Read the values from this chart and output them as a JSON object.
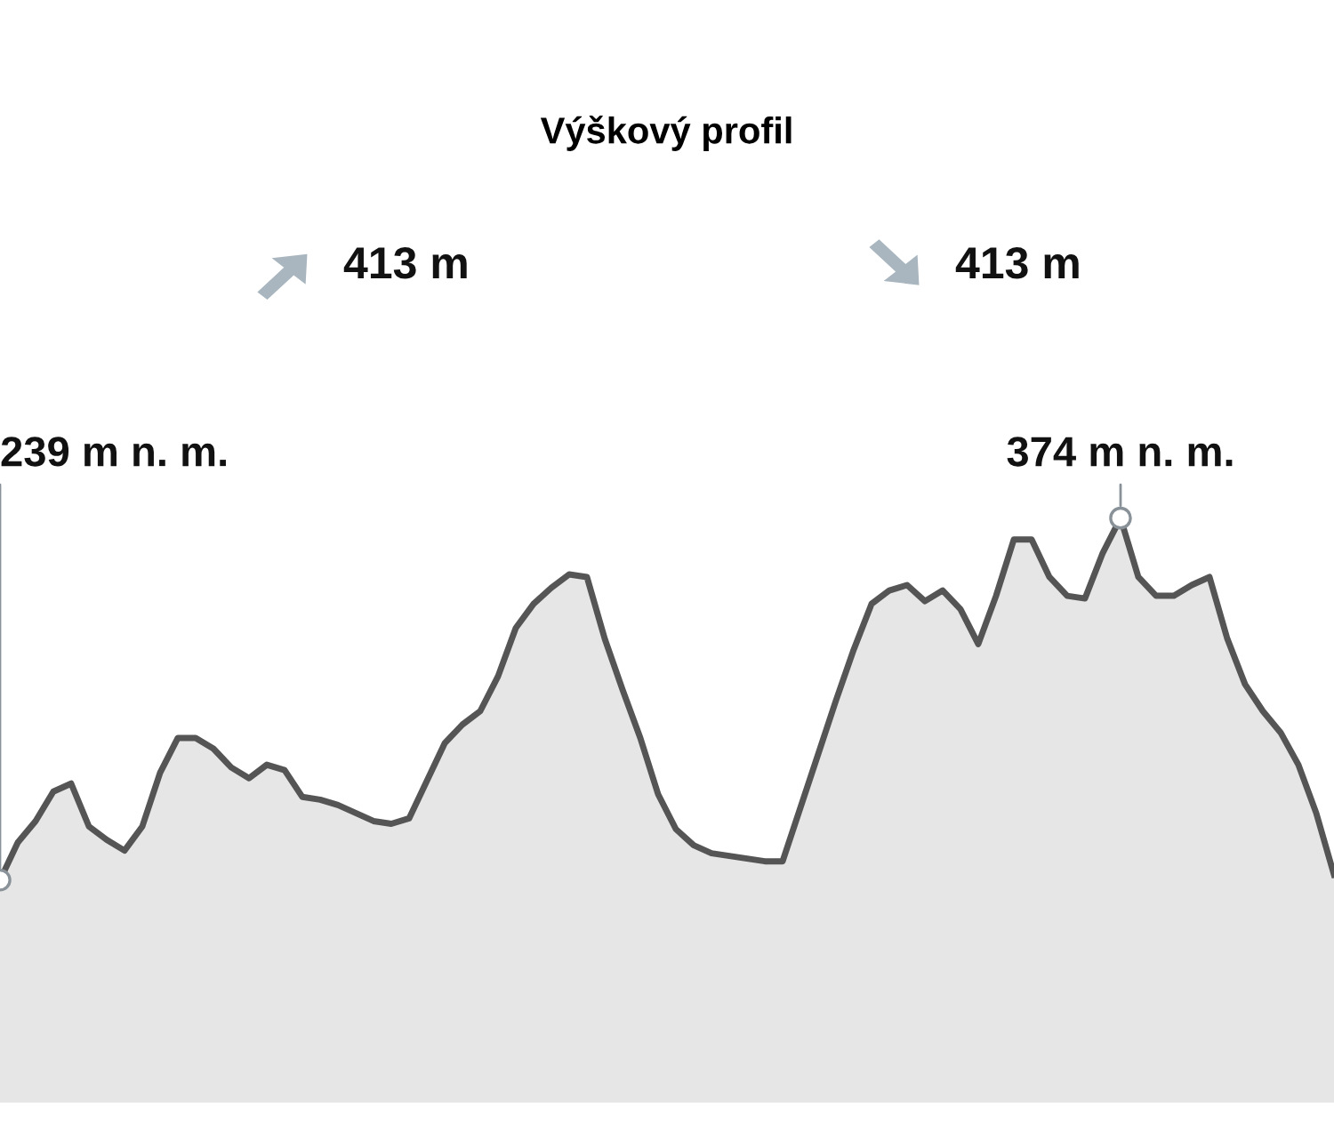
{
  "chart_data": {
    "type": "area",
    "title": "Výškový profil",
    "annotations": [
      "413 m",
      "413 m"
    ],
    "categories": [
      null,
      null,
      null,
      null,
      null,
      null,
      null,
      null,
      null,
      null,
      null,
      null,
      null,
      null,
      null,
      null,
      null,
      null,
      null,
      null,
      null,
      null,
      null,
      null,
      null,
      null,
      null,
      null,
      null,
      null,
      null,
      null,
      null,
      null,
      null,
      null,
      null,
      null,
      null,
      null,
      null,
      null,
      null,
      null,
      null,
      null,
      null,
      null,
      null,
      null,
      null,
      null,
      null,
      null,
      null,
      null,
      null,
      null,
      null,
      null,
      null,
      null,
      null,
      null,
      null,
      null,
      null,
      null,
      null,
      null,
      null,
      null,
      null,
      null,
      null,
      null
    ],
    "series": [
      {
        "color": "#555555",
        "values": [
          239,
          253,
          261,
          272,
          275,
          259,
          254,
          250,
          259,
          279,
          292,
          292,
          288,
          281,
          277,
          282,
          280,
          270,
          269,
          267,
          264,
          261,
          260,
          262,
          276,
          290,
          297,
          302,
          315,
          333,
          342,
          348,
          353,
          352,
          329,
          310,
          292,
          271,
          258,
          252,
          249,
          248,
          247,
          246,
          246,
          266,
          286,
          306,
          325,
          342,
          347,
          349,
          343,
          347,
          340,
          327,
          345,
          366,
          366,
          352,
          345,
          344,
          361,
          374,
          352,
          345,
          345,
          349,
          352,
          329,
          312,
          302,
          294,
          282,
          264,
          241
        ],
        "value_labels": [
          "239 m n. m.",
          null,
          null,
          null,
          null,
          null,
          null,
          null,
          null,
          null,
          null,
          null,
          null,
          null,
          null,
          null,
          null,
          null,
          null,
          null,
          null,
          null,
          null,
          null,
          null,
          null,
          null,
          null,
          null,
          null,
          null,
          null,
          null,
          null,
          null,
          null,
          null,
          null,
          null,
          null,
          null,
          null,
          null,
          null,
          null,
          null,
          null,
          null,
          null,
          null,
          null,
          null,
          null,
          null,
          null,
          null,
          null,
          null,
          null,
          null,
          null,
          null,
          null,
          "374 m n. m.",
          null,
          null,
          null,
          null,
          null,
          null,
          null,
          null,
          null,
          null,
          null,
          null
        ]
      }
    ],
    "marker": "none"
  }
}
